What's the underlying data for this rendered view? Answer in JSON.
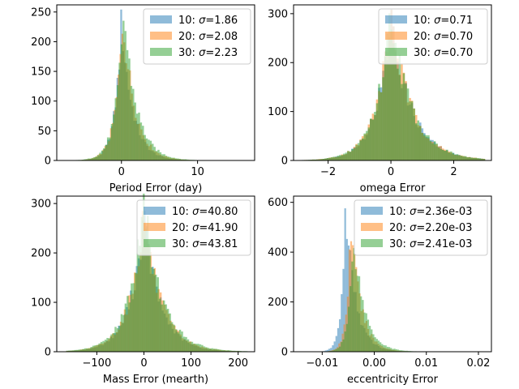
{
  "chart_data": [
    {
      "type": "histogram",
      "xlabel": "Period Error (day)",
      "ylabel": "",
      "xlim": [
        -8.5,
        17.5
      ],
      "ylim": [
        0,
        262
      ],
      "xticks": [
        0,
        10
      ],
      "yticks": [
        0,
        50,
        100,
        150,
        200,
        250
      ],
      "legend_position": "top-right",
      "series": [
        {
          "name": "10: σ=1.86",
          "color": "#1f77b4",
          "peak": 235,
          "peak_x": 0.0,
          "spread_left": 1.0,
          "spread_right": 1.7,
          "x_min": -7.0,
          "x_max": 15.0
        },
        {
          "name": "20: σ=2.08",
          "color": "#ff7f0e",
          "peak": 245,
          "peak_x": 0.2,
          "spread_left": 1.1,
          "spread_right": 1.8,
          "x_min": -7.0,
          "x_max": 15.5
        },
        {
          "name": "30: σ=2.23",
          "color": "#2ca02c",
          "peak": 250,
          "peak_x": 0.3,
          "spread_left": 1.2,
          "spread_right": 1.9,
          "x_min": -6.5,
          "x_max": 16.5
        }
      ]
    },
    {
      "type": "histogram",
      "xlabel": "omega Error",
      "ylabel": "",
      "xlim": [
        -3.1,
        3.2
      ],
      "ylim": [
        0,
        318
      ],
      "xticks": [
        -2,
        0,
        2
      ],
      "yticks": [
        0,
        100,
        200,
        300
      ],
      "legend_position": "top-right",
      "series": [
        {
          "name": "10: σ=0.71",
          "color": "#1f77b4",
          "peak": 290,
          "peak_x": 0.0,
          "spread_left": 0.55,
          "spread_right": 0.75,
          "x_min": -2.9,
          "x_max": 3.0
        },
        {
          "name": "20: σ=0.70",
          "color": "#ff7f0e",
          "peak": 300,
          "peak_x": 0.0,
          "spread_left": 0.55,
          "spread_right": 0.75,
          "x_min": -2.9,
          "x_max": 3.0
        },
        {
          "name": "30: σ=0.70",
          "color": "#2ca02c",
          "peak": 305,
          "peak_x": 0.0,
          "spread_left": 0.55,
          "spread_right": 0.75,
          "x_min": -2.9,
          "x_max": 3.0
        }
      ]
    },
    {
      "type": "histogram",
      "xlabel": "Mass Error (mearth)",
      "ylabel": "",
      "xlim": [
        -185,
        235
      ],
      "ylim": [
        0,
        315
      ],
      "xticks": [
        -100,
        0,
        100,
        200
      ],
      "yticks": [
        0,
        100,
        200,
        300
      ],
      "legend_position": "top-right",
      "series": [
        {
          "name": "10: σ=40.80",
          "color": "#1f77b4",
          "peak": 270,
          "peak_x": 0.0,
          "spread_left": 35,
          "spread_right": 40,
          "x_min": -165,
          "x_max": 215
        },
        {
          "name": "20: σ=41.90",
          "color": "#ff7f0e",
          "peak": 280,
          "peak_x": 0.0,
          "spread_left": 36,
          "spread_right": 42,
          "x_min": -165,
          "x_max": 215
        },
        {
          "name": "30: σ=43.81",
          "color": "#2ca02c",
          "peak": 300,
          "peak_x": 0.0,
          "spread_left": 37,
          "spread_right": 44,
          "x_min": -165,
          "x_max": 220
        }
      ]
    },
    {
      "type": "histogram",
      "xlabel": "eccentricity Error",
      "ylabel": "",
      "xlim": [
        -0.0155,
        0.0225
      ],
      "ylim": [
        0,
        625
      ],
      "xticks": [
        -0.01,
        0.0,
        0.01,
        0.02
      ],
      "xticklabels": [
        "−0.01",
        "0.00",
        "0.01",
        "0.02"
      ],
      "yticks": [
        0,
        200,
        400,
        600
      ],
      "legend_position": "top-right",
      "series": [
        {
          "name": "10: σ=2.36e-03",
          "color": "#1f77b4",
          "peak": 590,
          "peak_x": -0.0055,
          "spread_left": 0.0009,
          "spread_right": 0.0022,
          "x_min": -0.0105,
          "x_max": 0.02
        },
        {
          "name": "20: σ=2.20e-03",
          "color": "#ff7f0e",
          "peak": 520,
          "peak_x": -0.0045,
          "spread_left": 0.0009,
          "spread_right": 0.0022,
          "x_min": -0.0105,
          "x_max": 0.019
        },
        {
          "name": "30: σ=2.41e-03",
          "color": "#2ca02c",
          "peak": 480,
          "peak_x": -0.004,
          "spread_left": 0.001,
          "spread_right": 0.0024,
          "x_min": -0.0105,
          "x_max": 0.02
        }
      ]
    }
  ]
}
